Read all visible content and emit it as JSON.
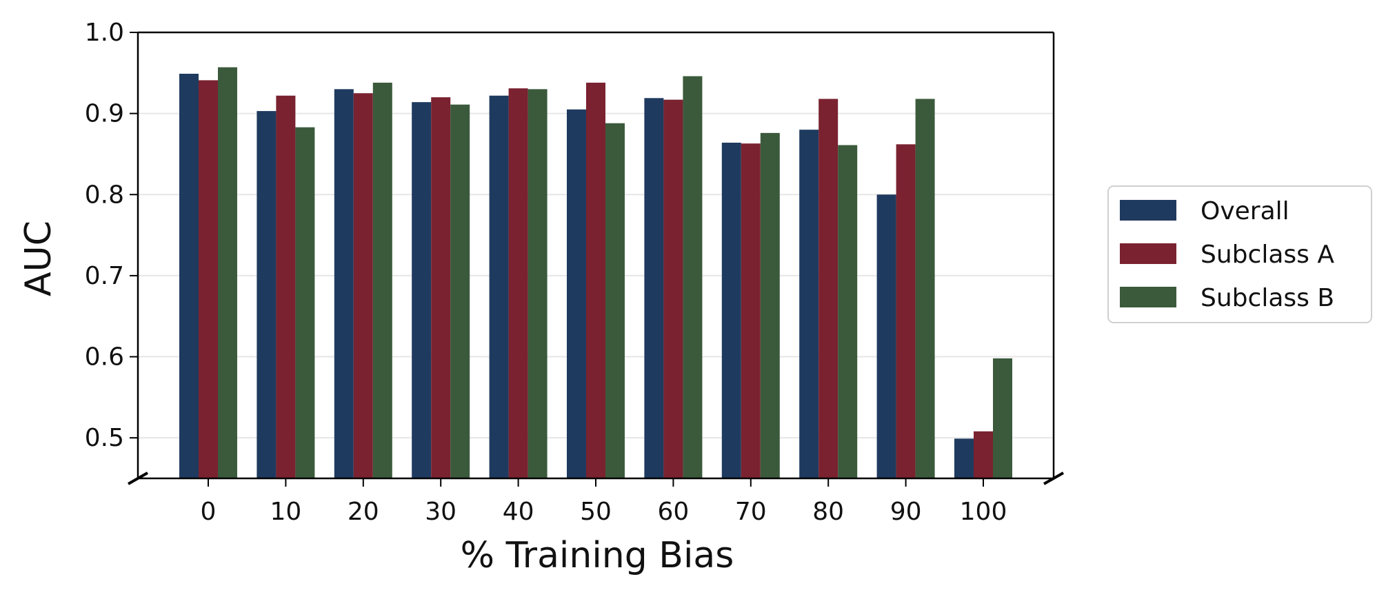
{
  "chart_data": {
    "type": "bar",
    "title": "",
    "xlabel": "% Training Bias",
    "ylabel": "AUC",
    "categories": [
      "0",
      "10",
      "20",
      "30",
      "40",
      "50",
      "60",
      "70",
      "80",
      "90",
      "100"
    ],
    "yticks": [
      "0.5",
      "0.6",
      "0.7",
      "0.8",
      "0.9",
      "1.0"
    ],
    "ylim": [
      0.45,
      1.0
    ],
    "y_axis_broken": true,
    "grid": "horizontal",
    "legend_position": "right",
    "series": [
      {
        "name": "Overall",
        "color": "#1f3a5f",
        "values": [
          0.949,
          0.903,
          0.93,
          0.914,
          0.922,
          0.905,
          0.919,
          0.864,
          0.88,
          0.8,
          0.499
        ]
      },
      {
        "name": "Subclass A",
        "color": "#7a2230",
        "values": [
          0.941,
          0.922,
          0.925,
          0.92,
          0.931,
          0.938,
          0.917,
          0.863,
          0.918,
          0.862,
          0.508
        ]
      },
      {
        "name": "Subclass B",
        "color": "#3b5a3c",
        "values": [
          0.957,
          0.883,
          0.938,
          0.911,
          0.93,
          0.888,
          0.946,
          0.876,
          0.861,
          0.918,
          0.598
        ]
      }
    ]
  }
}
